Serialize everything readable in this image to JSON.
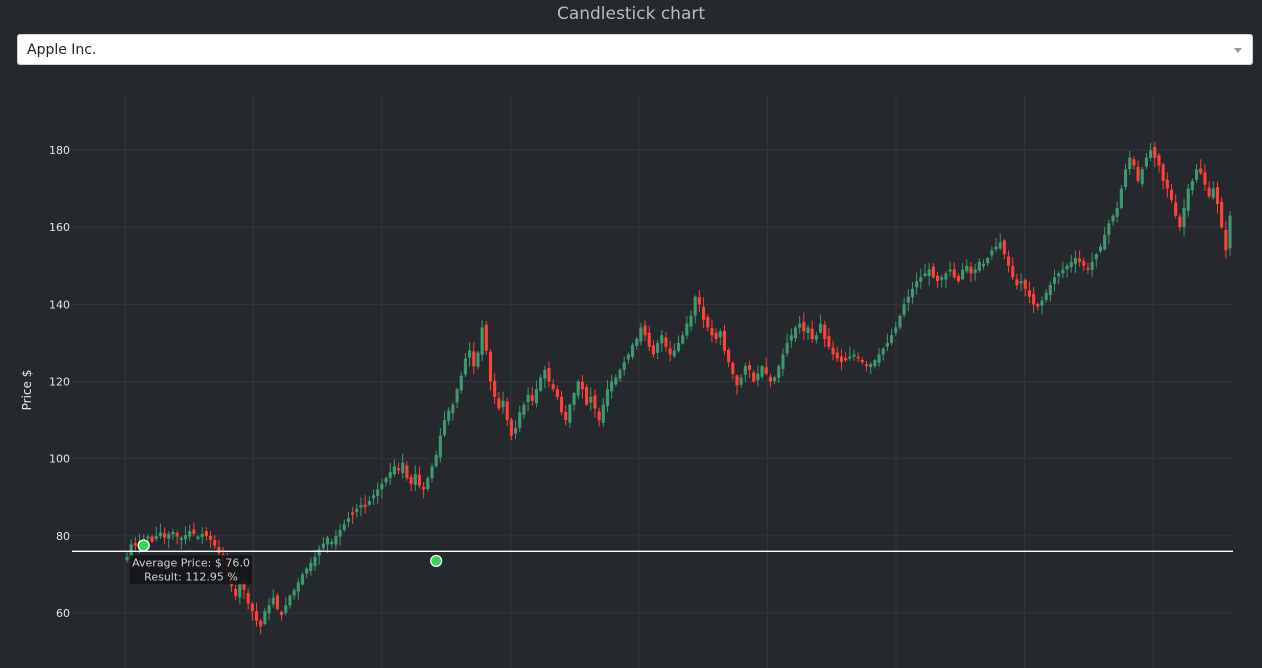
{
  "page": {
    "title": "Candlestick chart"
  },
  "selector": {
    "selected": "Apple Inc."
  },
  "colors": {
    "background": "#25282d",
    "grid": "#33373d",
    "up": "#3d9970",
    "down": "#ff4136",
    "marker": "#3bd45a",
    "average_line": "#ffffff",
    "text": "#e6e6e6"
  },
  "annotation": {
    "line1": "Average Price: $ 76.0",
    "line2": "Result: 112.95 %"
  },
  "chart_data": {
    "type": "candlestick",
    "title": "",
    "xlabel": "",
    "ylabel": "Price $",
    "ylim": [
      48,
      192
    ],
    "yticks": [
      60,
      80,
      100,
      120,
      140,
      160,
      180
    ],
    "x_grid_count": 10,
    "grid": true,
    "average_price": 76.0,
    "markers": [
      {
        "index": 4,
        "price": 77.5
      },
      {
        "index": 74,
        "price": 73.5
      }
    ],
    "closes": [
      74.5,
      77.8,
      77.5,
      78.5,
      79.0,
      79.8,
      78.5,
      80.0,
      80.8,
      79.6,
      80.5,
      81.0,
      79.8,
      79.5,
      80.2,
      81.2,
      80.5,
      79.8,
      80.5,
      80.0,
      79.0,
      77.5,
      75.5,
      72.5,
      70.0,
      67.0,
      64.5,
      68.0,
      66.0,
      62.5,
      60.5,
      58.0,
      56.5,
      60.5,
      62.0,
      64.0,
      61.0,
      59.5,
      62.0,
      64.5,
      66.0,
      68.0,
      70.0,
      71.5,
      73.0,
      74.5,
      76.5,
      78.0,
      79.5,
      78.5,
      80.0,
      81.5,
      83.0,
      84.5,
      85.5,
      87.0,
      88.0,
      87.5,
      89.0,
      90.5,
      92.0,
      93.5,
      95.0,
      96.5,
      98.0,
      97.0,
      99.0,
      95.0,
      93.5,
      96.0,
      93.0,
      92.0,
      95.0,
      98.0,
      101.0,
      106.0,
      110.0,
      112.5,
      114.0,
      118.0,
      121.5,
      126.0,
      128.0,
      124.0,
      127.5,
      134.0,
      128.0,
      120.0,
      116.0,
      113.0,
      115.0,
      110.0,
      106.0,
      108.0,
      112.0,
      114.0,
      116.5,
      115.0,
      118.0,
      121.0,
      123.0,
      120.0,
      118.0,
      116.0,
      112.0,
      110.0,
      114.0,
      117.0,
      120.0,
      118.0,
      114.0,
      116.0,
      113.0,
      110.0,
      114.0,
      118.0,
      120.0,
      121.0,
      123.0,
      125.0,
      127.0,
      129.5,
      131.0,
      134.0,
      132.0,
      129.0,
      127.0,
      130.0,
      132.0,
      129.0,
      127.0,
      128.0,
      130.0,
      132.0,
      135.0,
      137.0,
      142.0,
      140.0,
      136.0,
      134.0,
      132.0,
      131.0,
      133.0,
      128.0,
      125.0,
      122.0,
      119.0,
      121.0,
      124.0,
      123.0,
      120.0,
      122.0,
      124.0,
      122.0,
      120.0,
      121.0,
      124.0,
      127.0,
      130.0,
      132.0,
      134.0,
      135.0,
      133.0,
      134.0,
      131.0,
      132.0,
      135.0,
      131.0,
      129.0,
      127.0,
      126.0,
      125.0,
      125.5,
      126.5,
      127.0,
      126.0,
      125.0,
      124.0,
      124.5,
      125.5,
      127.0,
      128.5,
      130.0,
      132.0,
      134.0,
      137.0,
      140.0,
      142.0,
      144.0,
      146.0,
      147.0,
      148.0,
      149.0,
      147.0,
      146.0,
      147.0,
      148.0,
      149.0,
      147.0,
      146.0,
      149.0,
      150.0,
      148.0,
      149.0,
      151.0,
      150.5,
      152.0,
      154.0,
      155.0,
      156.0,
      153.0,
      150.0,
      147.0,
      145.0,
      146.0,
      144.0,
      142.0,
      140.0,
      139.5,
      141.0,
      143.0,
      145.0,
      147.0,
      148.0,
      149.0,
      150.0,
      151.0,
      152.0,
      151.0,
      150.0,
      149.0,
      151.0,
      153.0,
      155.0,
      158.0,
      161.0,
      163.0,
      165.0,
      170.0,
      175.0,
      178.0,
      176.0,
      172.0,
      175.0,
      178.0,
      180.0,
      178.0,
      176.0,
      172.0,
      170.0,
      167.0,
      163.0,
      160.0,
      165.0,
      170.0,
      172.0,
      175.0,
      174.0,
      171.0,
      168.0,
      170.0,
      166.0,
      160.0,
      154.0,
      163.0
    ]
  }
}
